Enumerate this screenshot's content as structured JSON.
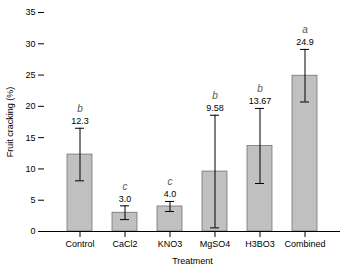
{
  "chart_data": {
    "type": "bar",
    "categories": [
      "Control",
      "CaCl2",
      "KNO3",
      "MgSO4",
      "H3BO3",
      "Combined"
    ],
    "values": [
      12.3,
      3.0,
      4.0,
      9.58,
      13.67,
      24.9
    ],
    "value_labels": [
      "12.3",
      "3.0",
      "4.0",
      "9.58",
      "13.67",
      "24.9"
    ],
    "errors": [
      4.2,
      1.1,
      0.8,
      9.0,
      6.0,
      4.2
    ],
    "letters": [
      "b",
      "c",
      "c",
      "b",
      "b",
      "a"
    ],
    "color": "#c0c0c0",
    "xlabel": "Treatment",
    "ylabel": "Fruit cracking (%)",
    "ylim": [
      0,
      35
    ],
    "yticks": [
      0,
      5,
      10,
      15,
      20,
      25,
      30,
      35
    ],
    "data_labels": true,
    "grid": false
  }
}
